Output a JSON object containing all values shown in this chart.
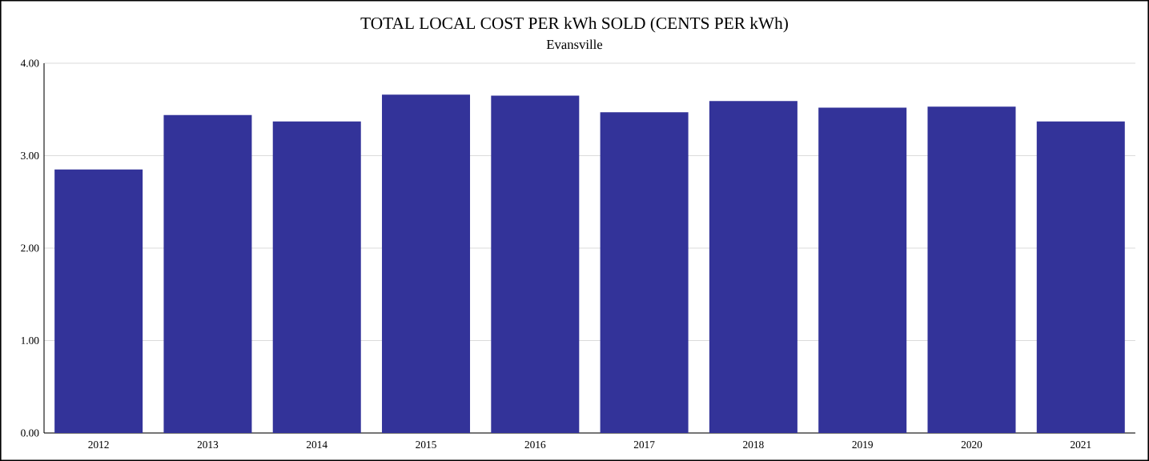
{
  "chart_data": {
    "type": "bar",
    "title": "TOTAL LOCAL COST PER kWh SOLD (CENTS PER kWh)",
    "subtitle": "Evansville",
    "categories": [
      "2012",
      "2013",
      "2014",
      "2015",
      "2016",
      "2017",
      "2018",
      "2019",
      "2020",
      "2021"
    ],
    "values": [
      2.85,
      3.44,
      3.37,
      3.66,
      3.65,
      3.47,
      3.59,
      3.52,
      3.53,
      3.37
    ],
    "color": "#333399",
    "ylim": [
      0,
      4
    ],
    "yticks": [
      {
        "value": 0,
        "label": "0.00"
      },
      {
        "value": 1,
        "label": "1.00"
      },
      {
        "value": 2,
        "label": "2.00"
      },
      {
        "value": 3,
        "label": "3.00"
      },
      {
        "value": 4,
        "label": "4.00"
      }
    ],
    "grid": "y"
  }
}
